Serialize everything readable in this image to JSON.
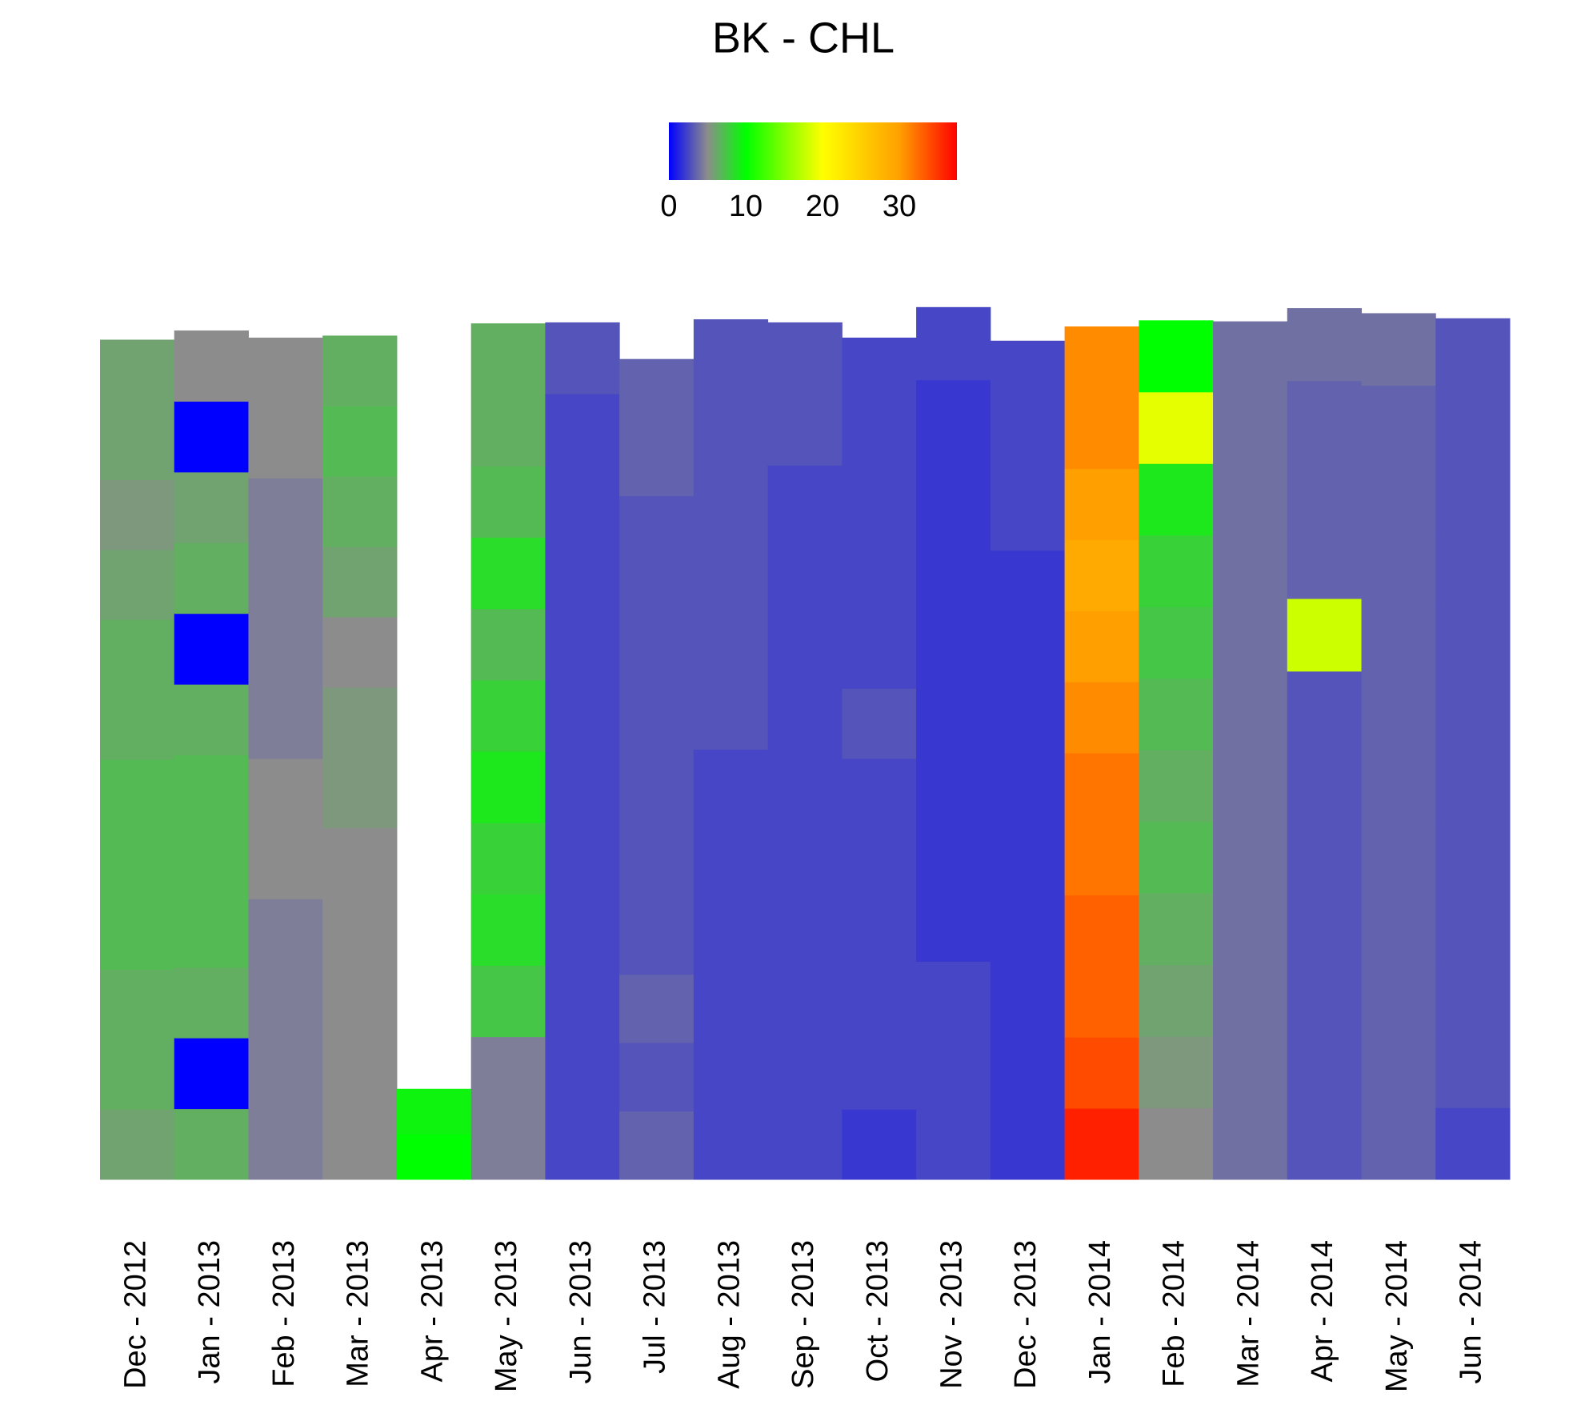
{
  "chart_data": {
    "type": "heatmap-columns",
    "title": "BK - CHL",
    "colorscale": [
      [
        0,
        "#0000ff"
      ],
      [
        5,
        "#8c8c8c"
      ],
      [
        10,
        "#00ff00"
      ],
      [
        20,
        "#ffff00"
      ],
      [
        30,
        "#ffa000"
      ],
      [
        37.5,
        "#ff0000"
      ]
    ],
    "clim": [
      0,
      37.5
    ],
    "cticks": [
      0,
      10,
      20,
      30
    ],
    "ylim": [
      0,
      860
    ],
    "columns": [
      {
        "label": "Dec - 2012",
        "depth": 825,
        "values": [
          6,
          6.5,
          6.5,
          7,
          7,
          7,
          6.5,
          6.5,
          6,
          5.5,
          6,
          6
        ]
      },
      {
        "label": "Jan - 2013",
        "depth": 834,
        "values": [
          6.5,
          0,
          6.5,
          7,
          7,
          7,
          6.5,
          0,
          6.5,
          6,
          0,
          5
        ]
      },
      {
        "label": "Feb - 2013",
        "depth": 827,
        "values": [
          4.5,
          4.5,
          4.5,
          4.5,
          5,
          5,
          4.5,
          4.5,
          4.5,
          4.5,
          5,
          5
        ]
      },
      {
        "label": "Mar - 2013",
        "depth": 829,
        "values": [
          5,
          5,
          5,
          5,
          5,
          5.5,
          5.5,
          5,
          6,
          6.5,
          7,
          6.5
        ]
      },
      {
        "label": "Apr - 2013",
        "depth": 89,
        "values": [
          10,
          9.5
        ]
      },
      {
        "label": "May - 2013",
        "depth": 841,
        "values": [
          4.5,
          4.5,
          7.5,
          8.5,
          8,
          9,
          8,
          7,
          8.5,
          7,
          6.5,
          6.5
        ]
      },
      {
        "label": "Jun - 2013",
        "depth": 842,
        "values": [
          2.5,
          2.5,
          2.5,
          2.5,
          2.5,
          2.5,
          2.5,
          2.5,
          2.5,
          2.5,
          2.5,
          3
        ]
      },
      {
        "label": "Jul - 2013",
        "depth": 806,
        "values": [
          3.5,
          3,
          3.5,
          3,
          3,
          3,
          3,
          3,
          3,
          3,
          3.5,
          3.5
        ]
      },
      {
        "label": "Aug - 2013",
        "depth": 845,
        "values": [
          2.5,
          2.5,
          2.5,
          2.5,
          2.5,
          2.5,
          3,
          3,
          3,
          3,
          3,
          3
        ]
      },
      {
        "label": "Sep - 2013",
        "depth": 842,
        "values": [
          2.5,
          2.5,
          2.5,
          2.5,
          2.5,
          2.5,
          2.5,
          2.5,
          2.5,
          2.5,
          3,
          3
        ]
      },
      {
        "label": "Oct - 2013",
        "depth": 827,
        "values": [
          2,
          2.5,
          2.5,
          2.5,
          2.5,
          2.5,
          3,
          2.5,
          2.5,
          2.5,
          2.5,
          2.5
        ]
      },
      {
        "label": "Nov - 2013",
        "depth": 857,
        "values": [
          2.5,
          2.5,
          2.5,
          2,
          2,
          2,
          2,
          2,
          2,
          2,
          2,
          2.5
        ]
      },
      {
        "label": "Dec - 2013",
        "depth": 824,
        "values": [
          2,
          2,
          2,
          2,
          2,
          2,
          2,
          2,
          2,
          2.5,
          2.5,
          2.5
        ]
      },
      {
        "label": "Jan - 2014",
        "depth": 838,
        "values": [
          36,
          34,
          33,
          33,
          32,
          32,
          31,
          30,
          29,
          30,
          31,
          31
        ]
      },
      {
        "label": "Feb - 2014",
        "depth": 844,
        "values": [
          5,
          5.5,
          6,
          6.5,
          7,
          6.5,
          7,
          7.5,
          8,
          9,
          19,
          10
        ]
      },
      {
        "label": "Mar - 2014",
        "depth": 843,
        "values": [
          4,
          4,
          4,
          4,
          4,
          4,
          4,
          4,
          4,
          4,
          4,
          4
        ]
      },
      {
        "label": "Apr - 2014",
        "depth": 856,
        "values": [
          3,
          3,
          3,
          3,
          3,
          3,
          3,
          18,
          3.5,
          3.5,
          3.5,
          4
        ]
      },
      {
        "label": "May - 2014",
        "depth": 851,
        "values": [
          3.5,
          3.5,
          3.5,
          3.5,
          3.5,
          3.5,
          3.5,
          3.5,
          3.5,
          3.5,
          3.5,
          4
        ]
      },
      {
        "label": "Jun - 2014",
        "depth": 846,
        "values": [
          2.5,
          3,
          3,
          3,
          3,
          3,
          3,
          3,
          3,
          3,
          3,
          3
        ]
      }
    ]
  }
}
